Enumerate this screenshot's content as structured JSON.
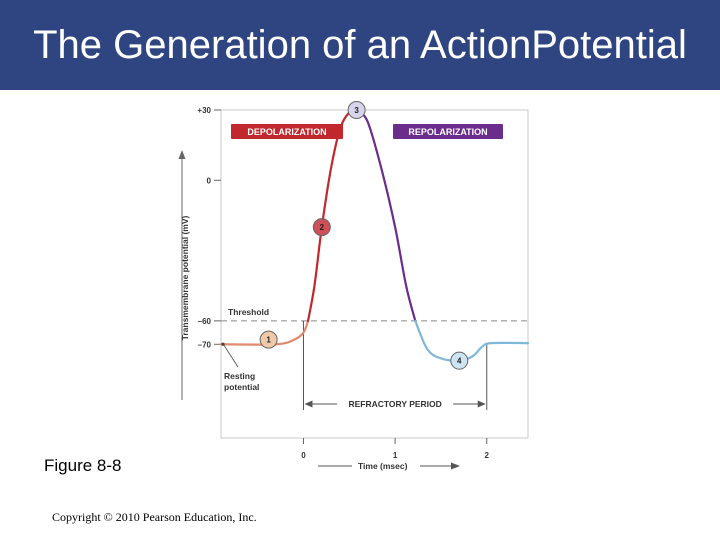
{
  "slide": {
    "title_line1": "The Generation of an Action",
    "title_line2": "Potential",
    "figure_label": "Figure 8-8",
    "copyright": "Copyright © 2010 Pearson Education, Inc."
  },
  "colors": {
    "title_bar": "#2f4581",
    "depolarization": "#c0282d",
    "repolarization": "#6b2d8c",
    "resting_curve": "#e08a70",
    "hyperpolarization_curve": "#7fb8d8",
    "marker_1": "#f0c9a8",
    "marker_2": "#d0505a",
    "marker_3": "#d8d4ec",
    "marker_4": "#cde4f2"
  },
  "chart_data": {
    "type": "line",
    "xlabel": "Time (msec)",
    "ylabel": "Transmembrane potential (mV)",
    "x_ticks": [
      "0",
      "1",
      "2"
    ],
    "y_ticks": [
      "+30",
      "0",
      "–60",
      "–70"
    ],
    "xlim": [
      -0.9,
      2.45
    ],
    "ylim": [
      -110,
      30
    ],
    "threshold": {
      "label": "Threshold",
      "y": -60
    },
    "resting_label_line1": "Resting",
    "resting_label_line2": "potential",
    "refractory_period": {
      "label": "REFRACTORY PERIOD",
      "x_start": 0,
      "x_end": 2
    },
    "phases": [
      {
        "label": "DEPOLARIZATION"
      },
      {
        "label": "REPOLARIZATION"
      }
    ],
    "segments": [
      {
        "phase": "resting",
        "points": [
          [
            -0.9,
            -70
          ],
          [
            -0.3,
            -70
          ],
          [
            -0.1,
            -68
          ],
          [
            0.0,
            -65
          ],
          [
            0.05,
            -60
          ]
        ]
      },
      {
        "phase": "depolarization",
        "points": [
          [
            0.05,
            -60
          ],
          [
            0.12,
            -45
          ],
          [
            0.2,
            -20
          ],
          [
            0.3,
            5
          ],
          [
            0.4,
            22
          ],
          [
            0.5,
            29
          ],
          [
            0.58,
            30
          ]
        ]
      },
      {
        "phase": "repolarization",
        "points": [
          [
            0.58,
            30
          ],
          [
            0.7,
            25
          ],
          [
            0.85,
            5
          ],
          [
            1.0,
            -20
          ],
          [
            1.12,
            -45
          ],
          [
            1.22,
            -60
          ]
        ]
      },
      {
        "phase": "hyperpolarization",
        "points": [
          [
            1.22,
            -60
          ],
          [
            1.35,
            -72
          ],
          [
            1.5,
            -76
          ],
          [
            1.7,
            -77
          ],
          [
            1.85,
            -75
          ],
          [
            1.95,
            -71
          ],
          [
            2.05,
            -69.5
          ],
          [
            2.45,
            -69.5
          ]
        ]
      }
    ],
    "markers": [
      {
        "label": "1",
        "x": -0.38,
        "y": -68
      },
      {
        "label": "2",
        "x": 0.2,
        "y": -20
      },
      {
        "label": "3",
        "x": 0.58,
        "y": 30
      },
      {
        "label": "4",
        "x": 1.7,
        "y": -77
      }
    ]
  }
}
